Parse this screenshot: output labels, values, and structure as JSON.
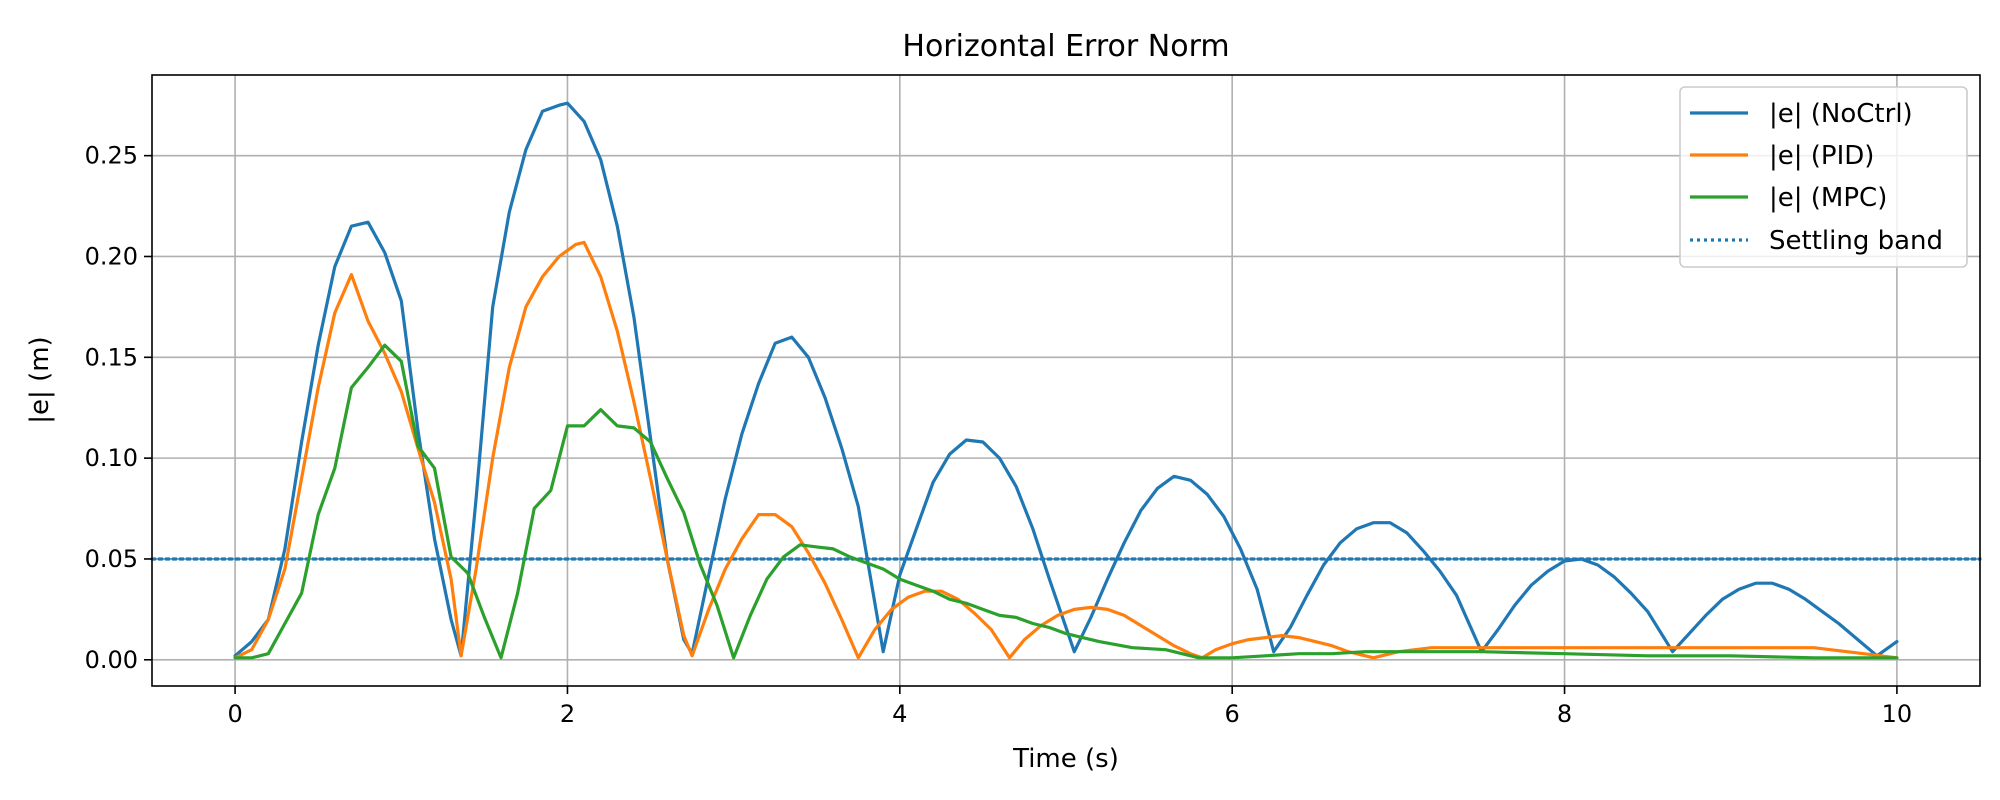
{
  "chart_data": {
    "type": "line",
    "title": "Horizontal Error Norm",
    "xlabel": "Time (s)",
    "ylabel": "|e| (m)",
    "xlim": [
      -0.5,
      10.5
    ],
    "ylim": [
      -0.013,
      0.29
    ],
    "xticks": [
      0,
      2,
      4,
      6,
      8,
      10
    ],
    "xtick_labels": [
      "0",
      "2",
      "4",
      "6",
      "8",
      "10"
    ],
    "yticks": [
      0.0,
      0.05,
      0.1,
      0.15,
      0.2,
      0.25
    ],
    "ytick_labels": [
      "0.00",
      "0.05",
      "0.10",
      "0.15",
      "0.20",
      "0.25"
    ],
    "grid": true,
    "legend_position": "top-right",
    "series": [
      {
        "name": "|e| (NoCtrl)",
        "color": "#1f77b4",
        "style": "solid",
        "x": [
          0.0,
          0.1,
          0.2,
          0.3,
          0.4,
          0.5,
          0.6,
          0.7,
          0.8,
          0.9,
          1.0,
          1.1,
          1.2,
          1.3,
          1.36,
          1.45,
          1.55,
          1.65,
          1.75,
          1.85,
          1.95,
          2.0,
          2.1,
          2.2,
          2.3,
          2.4,
          2.5,
          2.6,
          2.7,
          2.75,
          2.85,
          2.95,
          3.05,
          3.15,
          3.25,
          3.35,
          3.45,
          3.55,
          3.65,
          3.75,
          3.9,
          4.0,
          4.1,
          4.2,
          4.3,
          4.4,
          4.5,
          4.6,
          4.7,
          4.8,
          4.9,
          5.05,
          5.15,
          5.25,
          5.35,
          5.45,
          5.55,
          5.65,
          5.75,
          5.85,
          5.95,
          6.05,
          6.15,
          6.25,
          6.35,
          6.45,
          6.55,
          6.65,
          6.75,
          6.85,
          6.95,
          7.05,
          7.15,
          7.25,
          7.35,
          7.5,
          7.6,
          7.7,
          7.8,
          7.9,
          8.0,
          8.1,
          8.2,
          8.3,
          8.4,
          8.5,
          8.65,
          8.75,
          8.85,
          8.95,
          9.05,
          9.15,
          9.25,
          9.35,
          9.45,
          9.55,
          9.65,
          9.75,
          9.88,
          10.0
        ],
        "y": [
          0.002,
          0.009,
          0.02,
          0.055,
          0.108,
          0.156,
          0.195,
          0.215,
          0.217,
          0.202,
          0.178,
          0.114,
          0.06,
          0.02,
          0.002,
          0.08,
          0.175,
          0.222,
          0.253,
          0.272,
          0.275,
          0.276,
          0.267,
          0.248,
          0.215,
          0.17,
          0.11,
          0.05,
          0.01,
          0.003,
          0.042,
          0.08,
          0.112,
          0.137,
          0.157,
          0.16,
          0.15,
          0.13,
          0.105,
          0.076,
          0.004,
          0.042,
          0.065,
          0.088,
          0.102,
          0.109,
          0.108,
          0.1,
          0.086,
          0.065,
          0.04,
          0.004,
          0.021,
          0.04,
          0.058,
          0.074,
          0.085,
          0.091,
          0.089,
          0.082,
          0.071,
          0.055,
          0.035,
          0.004,
          0.016,
          0.032,
          0.047,
          0.058,
          0.065,
          0.068,
          0.068,
          0.063,
          0.054,
          0.044,
          0.032,
          0.004,
          0.015,
          0.027,
          0.037,
          0.044,
          0.049,
          0.05,
          0.047,
          0.041,
          0.033,
          0.024,
          0.004,
          0.013,
          0.022,
          0.03,
          0.035,
          0.038,
          0.038,
          0.035,
          0.03,
          0.024,
          0.018,
          0.011,
          0.002,
          0.009
        ]
      },
      {
        "name": "|e| (PID)",
        "color": "#ff7f0e",
        "style": "solid",
        "x": [
          0.0,
          0.1,
          0.2,
          0.3,
          0.4,
          0.5,
          0.6,
          0.7,
          0.8,
          0.9,
          1.0,
          1.1,
          1.2,
          1.3,
          1.36,
          1.45,
          1.55,
          1.65,
          1.75,
          1.85,
          1.95,
          2.05,
          2.1,
          2.2,
          2.3,
          2.4,
          2.5,
          2.6,
          2.7,
          2.75,
          2.85,
          2.95,
          3.05,
          3.15,
          3.25,
          3.35,
          3.45,
          3.55,
          3.65,
          3.75,
          3.85,
          3.95,
          4.05,
          4.15,
          4.25,
          4.35,
          4.45,
          4.55,
          4.66,
          4.75,
          4.85,
          4.95,
          5.05,
          5.15,
          5.25,
          5.35,
          5.45,
          5.55,
          5.65,
          5.75,
          5.82,
          5.9,
          6.0,
          6.1,
          6.2,
          6.3,
          6.4,
          6.5,
          6.6,
          6.7,
          6.85,
          7.0,
          7.2,
          7.5,
          8.0,
          8.5,
          9.0,
          9.5,
          9.8,
          10.0
        ],
        "y": [
          0.001,
          0.005,
          0.02,
          0.045,
          0.09,
          0.135,
          0.172,
          0.191,
          0.168,
          0.152,
          0.133,
          0.105,
          0.078,
          0.04,
          0.002,
          0.045,
          0.1,
          0.145,
          0.175,
          0.19,
          0.2,
          0.206,
          0.207,
          0.19,
          0.163,
          0.128,
          0.09,
          0.05,
          0.012,
          0.002,
          0.025,
          0.045,
          0.06,
          0.072,
          0.072,
          0.066,
          0.053,
          0.038,
          0.02,
          0.001,
          0.015,
          0.025,
          0.031,
          0.034,
          0.034,
          0.03,
          0.023,
          0.015,
          0.001,
          0.01,
          0.017,
          0.022,
          0.025,
          0.026,
          0.025,
          0.022,
          0.017,
          0.012,
          0.007,
          0.003,
          0.001,
          0.005,
          0.008,
          0.01,
          0.011,
          0.012,
          0.011,
          0.009,
          0.007,
          0.004,
          0.001,
          0.004,
          0.006,
          0.006,
          0.006,
          0.006,
          0.006,
          0.006,
          0.003,
          0.001
        ]
      },
      {
        "name": "|e| (MPC)",
        "color": "#2ca02c",
        "style": "solid",
        "x": [
          0.0,
          0.1,
          0.2,
          0.3,
          0.4,
          0.5,
          0.6,
          0.7,
          0.8,
          0.9,
          1.0,
          1.1,
          1.2,
          1.3,
          1.4,
          1.5,
          1.6,
          1.7,
          1.8,
          1.9,
          2.0,
          2.1,
          2.2,
          2.3,
          2.4,
          2.5,
          2.6,
          2.7,
          2.8,
          2.9,
          3.0,
          3.1,
          3.2,
          3.3,
          3.4,
          3.5,
          3.6,
          3.7,
          3.8,
          3.9,
          4.0,
          4.1,
          4.2,
          4.3,
          4.4,
          4.5,
          4.6,
          4.7,
          4.8,
          4.9,
          5.0,
          5.2,
          5.4,
          5.6,
          5.8,
          6.0,
          6.2,
          6.4,
          6.6,
          6.8,
          7.0,
          7.5,
          8.0,
          8.5,
          9.0,
          9.5,
          10.0
        ],
        "y": [
          0.001,
          0.001,
          0.003,
          0.018,
          0.033,
          0.072,
          0.095,
          0.135,
          0.145,
          0.156,
          0.148,
          0.106,
          0.095,
          0.051,
          0.043,
          0.021,
          0.001,
          0.033,
          0.075,
          0.084,
          0.116,
          0.116,
          0.124,
          0.116,
          0.115,
          0.108,
          0.09,
          0.073,
          0.047,
          0.027,
          0.001,
          0.022,
          0.04,
          0.051,
          0.057,
          0.056,
          0.055,
          0.051,
          0.048,
          0.045,
          0.04,
          0.037,
          0.034,
          0.03,
          0.028,
          0.025,
          0.022,
          0.021,
          0.018,
          0.016,
          0.013,
          0.009,
          0.006,
          0.005,
          0.001,
          0.001,
          0.002,
          0.003,
          0.003,
          0.004,
          0.004,
          0.004,
          0.003,
          0.002,
          0.002,
          0.001,
          0.001
        ]
      },
      {
        "name": "Settling band",
        "color": "#1f77b4",
        "style": "dotted",
        "x": [
          -0.5,
          10.5
        ],
        "y": [
          0.05,
          0.05
        ]
      }
    ]
  }
}
